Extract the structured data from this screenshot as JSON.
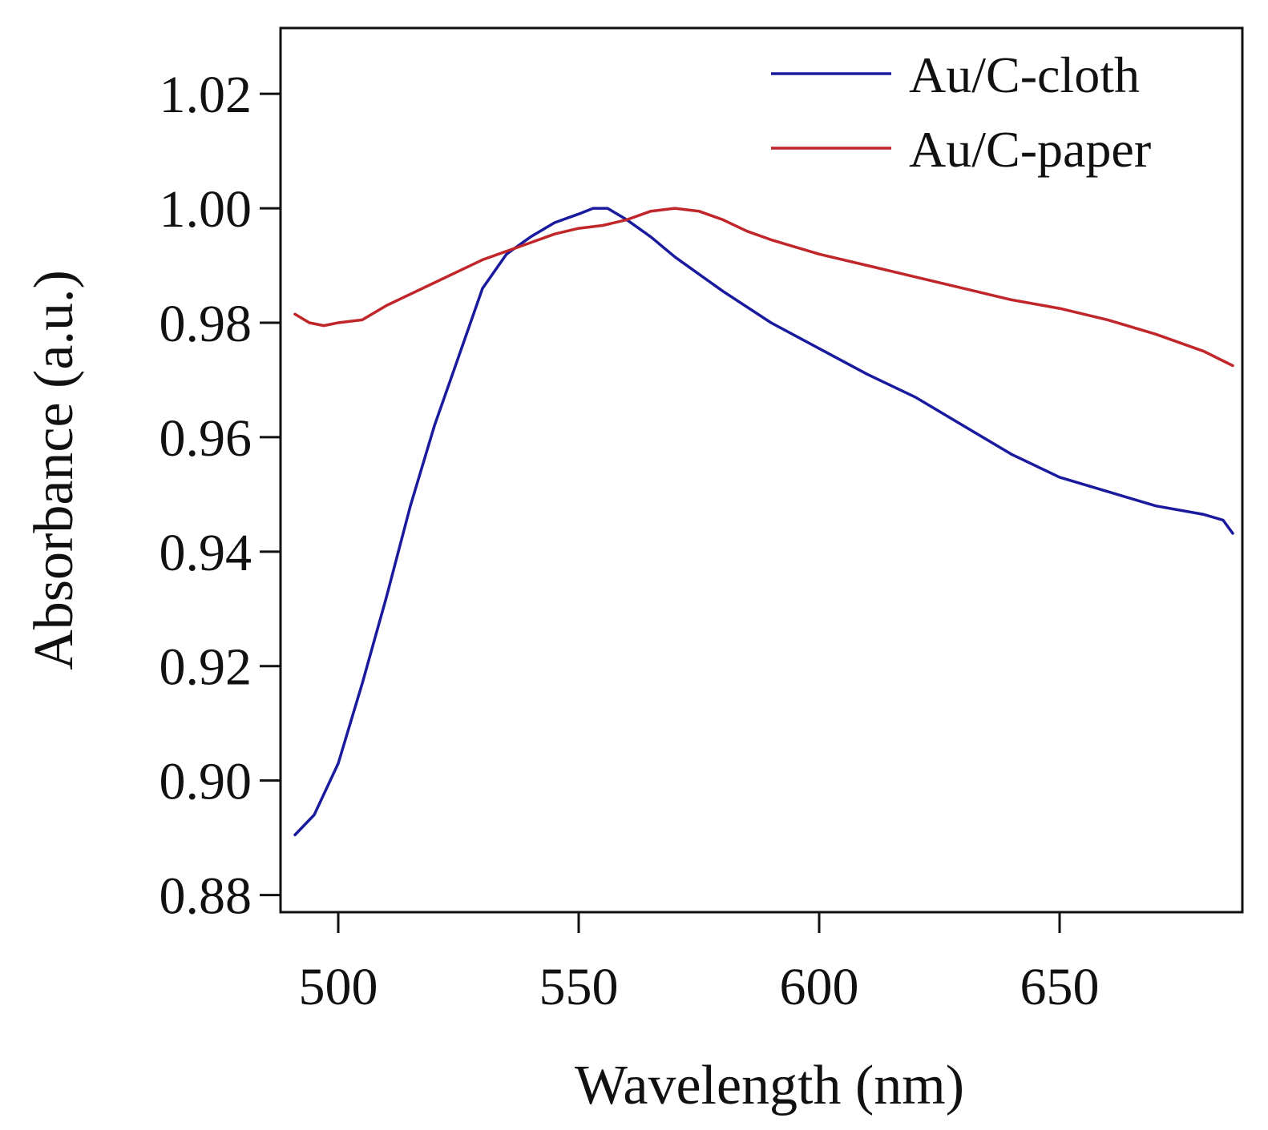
{
  "chart_data": {
    "type": "line",
    "title": "",
    "xlabel": "Wavelength (nm)",
    "ylabel": "Absorbance (a.u.)",
    "xlim": [
      488,
      688
    ],
    "ylim": [
      0.877,
      1.0315
    ],
    "xticks": [
      500,
      550,
      600,
      650
    ],
    "xtick_labels": [
      "500",
      "550",
      "600",
      "650"
    ],
    "yticks": [
      0.88,
      0.9,
      0.92,
      0.94,
      0.96,
      0.98,
      1.0,
      1.02
    ],
    "ytick_labels": [
      "0.88",
      "0.90",
      "0.92",
      "0.94",
      "0.96",
      "0.98",
      "1.00",
      "1.02"
    ],
    "grid": false,
    "legend_position": "top-right",
    "series": [
      {
        "name": "Au/C-cloth",
        "color": "#1a1a9e",
        "x": [
          491,
          495,
          500,
          505,
          510,
          515,
          520,
          525,
          530,
          535,
          540,
          545,
          550,
          553,
          556,
          560,
          565,
          570,
          575,
          580,
          590,
          600,
          610,
          620,
          630,
          640,
          650,
          660,
          670,
          680,
          684,
          686
        ],
        "y": [
          0.8905,
          0.894,
          0.903,
          0.917,
          0.932,
          0.948,
          0.962,
          0.974,
          0.986,
          0.992,
          0.995,
          0.9975,
          0.999,
          1.0,
          1.0,
          0.998,
          0.995,
          0.9915,
          0.9885,
          0.9855,
          0.98,
          0.9755,
          0.971,
          0.967,
          0.962,
          0.957,
          0.953,
          0.9505,
          0.948,
          0.9465,
          0.9455,
          0.9432
        ]
      },
      {
        "name": "Au/C-paper",
        "color": "#c0262a",
        "x": [
          491,
          494,
          497,
          500,
          505,
          510,
          515,
          520,
          525,
          530,
          535,
          540,
          545,
          550,
          555,
          560,
          565,
          570,
          575,
          580,
          585,
          590,
          600,
          610,
          620,
          630,
          640,
          650,
          660,
          670,
          680,
          686
        ],
        "y": [
          0.9815,
          0.98,
          0.9795,
          0.98,
          0.9805,
          0.983,
          0.985,
          0.987,
          0.989,
          0.991,
          0.9925,
          0.994,
          0.9955,
          0.9965,
          0.997,
          0.998,
          0.9995,
          1.0,
          0.9995,
          0.998,
          0.996,
          0.9945,
          0.992,
          0.99,
          0.988,
          0.986,
          0.984,
          0.9825,
          0.9805,
          0.978,
          0.975,
          0.9725
        ]
      }
    ]
  }
}
